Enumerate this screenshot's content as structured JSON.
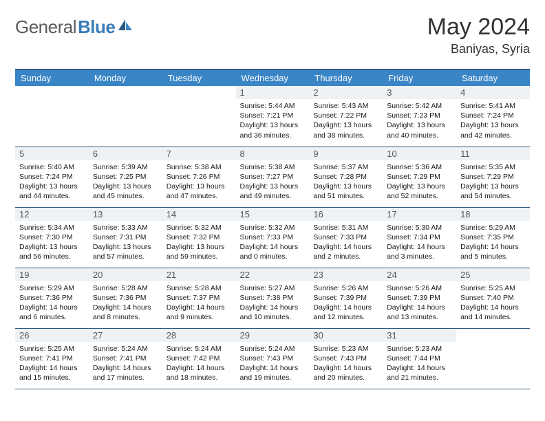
{
  "logo": {
    "part1": "General",
    "part2": "Blue"
  },
  "title": "May 2024",
  "location": "Baniyas, Syria",
  "colors": {
    "header_bg": "#3a85c6",
    "header_text": "#ffffff",
    "border": "#2b5a82",
    "daynum_bg": "#eef2f5",
    "logo_gray": "#5a5a5a",
    "logo_blue": "#3a7cb8"
  },
  "weekdays": [
    "Sunday",
    "Monday",
    "Tuesday",
    "Wednesday",
    "Thursday",
    "Friday",
    "Saturday"
  ],
  "weeks": [
    [
      {
        "n": "",
        "sr": "",
        "ss": "",
        "dl": ""
      },
      {
        "n": "",
        "sr": "",
        "ss": "",
        "dl": ""
      },
      {
        "n": "",
        "sr": "",
        "ss": "",
        "dl": ""
      },
      {
        "n": "1",
        "sr": "5:44 AM",
        "ss": "7:21 PM",
        "dl": "13 hours and 36 minutes."
      },
      {
        "n": "2",
        "sr": "5:43 AM",
        "ss": "7:22 PM",
        "dl": "13 hours and 38 minutes."
      },
      {
        "n": "3",
        "sr": "5:42 AM",
        "ss": "7:23 PM",
        "dl": "13 hours and 40 minutes."
      },
      {
        "n": "4",
        "sr": "5:41 AM",
        "ss": "7:24 PM",
        "dl": "13 hours and 42 minutes."
      }
    ],
    [
      {
        "n": "5",
        "sr": "5:40 AM",
        "ss": "7:24 PM",
        "dl": "13 hours and 44 minutes."
      },
      {
        "n": "6",
        "sr": "5:39 AM",
        "ss": "7:25 PM",
        "dl": "13 hours and 45 minutes."
      },
      {
        "n": "7",
        "sr": "5:38 AM",
        "ss": "7:26 PM",
        "dl": "13 hours and 47 minutes."
      },
      {
        "n": "8",
        "sr": "5:38 AM",
        "ss": "7:27 PM",
        "dl": "13 hours and 49 minutes."
      },
      {
        "n": "9",
        "sr": "5:37 AM",
        "ss": "7:28 PM",
        "dl": "13 hours and 51 minutes."
      },
      {
        "n": "10",
        "sr": "5:36 AM",
        "ss": "7:29 PM",
        "dl": "13 hours and 52 minutes."
      },
      {
        "n": "11",
        "sr": "5:35 AM",
        "ss": "7:29 PM",
        "dl": "13 hours and 54 minutes."
      }
    ],
    [
      {
        "n": "12",
        "sr": "5:34 AM",
        "ss": "7:30 PM",
        "dl": "13 hours and 56 minutes."
      },
      {
        "n": "13",
        "sr": "5:33 AM",
        "ss": "7:31 PM",
        "dl": "13 hours and 57 minutes."
      },
      {
        "n": "14",
        "sr": "5:32 AM",
        "ss": "7:32 PM",
        "dl": "13 hours and 59 minutes."
      },
      {
        "n": "15",
        "sr": "5:32 AM",
        "ss": "7:33 PM",
        "dl": "14 hours and 0 minutes."
      },
      {
        "n": "16",
        "sr": "5:31 AM",
        "ss": "7:33 PM",
        "dl": "14 hours and 2 minutes."
      },
      {
        "n": "17",
        "sr": "5:30 AM",
        "ss": "7:34 PM",
        "dl": "14 hours and 3 minutes."
      },
      {
        "n": "18",
        "sr": "5:29 AM",
        "ss": "7:35 PM",
        "dl": "14 hours and 5 minutes."
      }
    ],
    [
      {
        "n": "19",
        "sr": "5:29 AM",
        "ss": "7:36 PM",
        "dl": "14 hours and 6 minutes."
      },
      {
        "n": "20",
        "sr": "5:28 AM",
        "ss": "7:36 PM",
        "dl": "14 hours and 8 minutes."
      },
      {
        "n": "21",
        "sr": "5:28 AM",
        "ss": "7:37 PM",
        "dl": "14 hours and 9 minutes."
      },
      {
        "n": "22",
        "sr": "5:27 AM",
        "ss": "7:38 PM",
        "dl": "14 hours and 10 minutes."
      },
      {
        "n": "23",
        "sr": "5:26 AM",
        "ss": "7:39 PM",
        "dl": "14 hours and 12 minutes."
      },
      {
        "n": "24",
        "sr": "5:26 AM",
        "ss": "7:39 PM",
        "dl": "14 hours and 13 minutes."
      },
      {
        "n": "25",
        "sr": "5:25 AM",
        "ss": "7:40 PM",
        "dl": "14 hours and 14 minutes."
      }
    ],
    [
      {
        "n": "26",
        "sr": "5:25 AM",
        "ss": "7:41 PM",
        "dl": "14 hours and 15 minutes."
      },
      {
        "n": "27",
        "sr": "5:24 AM",
        "ss": "7:41 PM",
        "dl": "14 hours and 17 minutes."
      },
      {
        "n": "28",
        "sr": "5:24 AM",
        "ss": "7:42 PM",
        "dl": "14 hours and 18 minutes."
      },
      {
        "n": "29",
        "sr": "5:24 AM",
        "ss": "7:43 PM",
        "dl": "14 hours and 19 minutes."
      },
      {
        "n": "30",
        "sr": "5:23 AM",
        "ss": "7:43 PM",
        "dl": "14 hours and 20 minutes."
      },
      {
        "n": "31",
        "sr": "5:23 AM",
        "ss": "7:44 PM",
        "dl": "14 hours and 21 minutes."
      },
      {
        "n": "",
        "sr": "",
        "ss": "",
        "dl": ""
      }
    ]
  ],
  "labels": {
    "sunrise": "Sunrise:",
    "sunset": "Sunset:",
    "daylight": "Daylight:"
  }
}
